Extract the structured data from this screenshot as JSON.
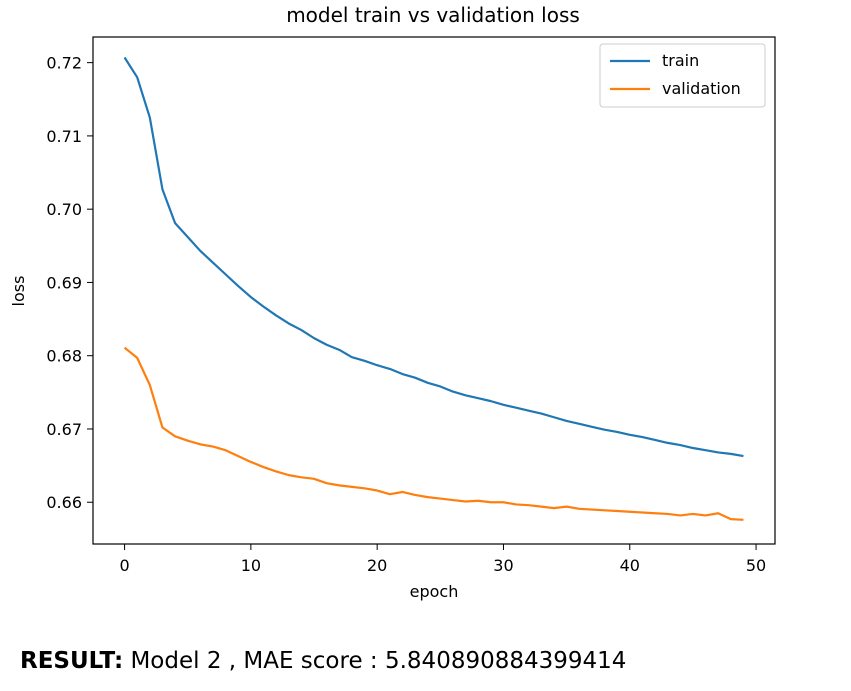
{
  "chart_data": {
    "type": "line",
    "title": "model train vs validation loss",
    "xlabel": "epoch",
    "ylabel": "loss",
    "xlim": [
      -2.5,
      51.5
    ],
    "ylim": [
      0.6543,
      0.7235
    ],
    "xticks": [
      0,
      10,
      20,
      30,
      40,
      50
    ],
    "yticks": [
      0.66,
      0.67,
      0.68,
      0.69,
      0.7,
      0.71,
      0.72
    ],
    "ytick_labels": [
      "0.66",
      "0.67",
      "0.68",
      "0.69",
      "0.70",
      "0.71",
      "0.72"
    ],
    "grid": false,
    "legend_position": "top-right",
    "x": [
      0,
      1,
      2,
      3,
      4,
      5,
      6,
      7,
      8,
      9,
      10,
      11,
      12,
      13,
      14,
      15,
      16,
      17,
      18,
      19,
      20,
      21,
      22,
      23,
      24,
      25,
      26,
      27,
      28,
      29,
      30,
      31,
      32,
      33,
      34,
      35,
      36,
      37,
      38,
      39,
      40,
      41,
      42,
      43,
      44,
      45,
      46,
      47,
      48,
      49
    ],
    "series": [
      {
        "name": "train",
        "color": "#1f77b4",
        "values": [
          0.7207,
          0.718,
          0.7125,
          0.7027,
          0.6981,
          0.6962,
          0.6943,
          0.6927,
          0.6911,
          0.6895,
          0.688,
          0.6867,
          0.6855,
          0.6844,
          0.6835,
          0.6824,
          0.6815,
          0.6808,
          0.6798,
          0.6793,
          0.6787,
          0.6782,
          0.6775,
          0.677,
          0.6763,
          0.6758,
          0.6751,
          0.6746,
          0.6742,
          0.6738,
          0.6733,
          0.6729,
          0.6725,
          0.6721,
          0.6716,
          0.6711,
          0.6707,
          0.6703,
          0.6699,
          0.6696,
          0.6692,
          0.6689,
          0.6685,
          0.6681,
          0.6678,
          0.6674,
          0.6671,
          0.6668,
          0.6666,
          0.6663
        ]
      },
      {
        "name": "validation",
        "color": "#ff7f0e",
        "values": [
          0.6811,
          0.6797,
          0.676,
          0.6702,
          0.669,
          0.6684,
          0.6679,
          0.6676,
          0.6671,
          0.6663,
          0.6655,
          0.6648,
          0.6642,
          0.6637,
          0.6634,
          0.6632,
          0.6626,
          0.6623,
          0.6621,
          0.6619,
          0.6616,
          0.6611,
          0.6614,
          0.661,
          0.6607,
          0.6605,
          0.6603,
          0.6601,
          0.6602,
          0.66,
          0.66,
          0.6597,
          0.6596,
          0.6594,
          0.6592,
          0.6594,
          0.6591,
          0.659,
          0.6589,
          0.6588,
          0.6587,
          0.6586,
          0.6585,
          0.6584,
          0.6582,
          0.6584,
          0.6582,
          0.6585,
          0.6577,
          0.6576
        ]
      }
    ]
  },
  "result": {
    "label": "RESULT:",
    "text": " Model 2 , MAE score : 5.840890884399414"
  }
}
